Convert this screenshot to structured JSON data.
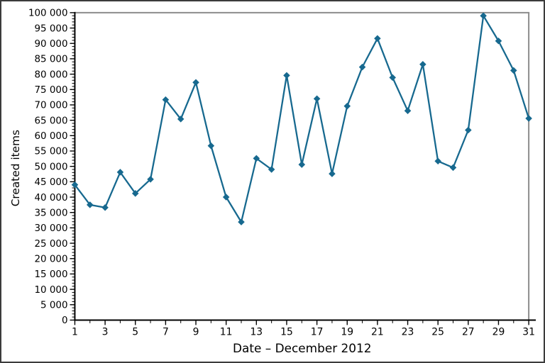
{
  "figure": {
    "background": "#ffffff",
    "border_color": "#3b3b3b"
  },
  "chart_data": {
    "type": "line",
    "title": "",
    "xlabel": "Date – December 2012",
    "ylabel": "Created items",
    "series_name": "Created items",
    "x": [
      1,
      2,
      3,
      4,
      5,
      6,
      7,
      8,
      9,
      10,
      11,
      12,
      13,
      14,
      15,
      16,
      17,
      18,
      19,
      20,
      21,
      22,
      23,
      24,
      25,
      26,
      27,
      28,
      29,
      30,
      31
    ],
    "values": [
      44000,
      37500,
      36600,
      48100,
      41200,
      45800,
      71700,
      65400,
      77300,
      56700,
      40000,
      31900,
      52600,
      49000,
      79600,
      50600,
      72000,
      47600,
      69600,
      82300,
      91600,
      78900,
      68100,
      83200,
      51700,
      49600,
      61800,
      99000,
      90800,
      81200,
      65600
    ],
    "xlim": [
      1,
      31
    ],
    "ylim": [
      0,
      100000
    ],
    "ytick_major_step": 5000,
    "ytick_minor_step": 1000,
    "ytick_labels": [
      "0",
      "5 000",
      "10 000",
      "15 000",
      "20 000",
      "25 000",
      "30 000",
      "35 000",
      "40 000",
      "45 000",
      "50 000",
      "55 000",
      "60 000",
      "65 000",
      "70 000",
      "75 000",
      "80 000",
      "85 000",
      "90 000",
      "95 000",
      "100 000"
    ],
    "xtick_major": [
      1,
      3,
      5,
      7,
      9,
      11,
      13,
      15,
      17,
      19,
      21,
      23,
      25,
      27,
      29,
      31
    ],
    "xtick_labels": [
      "1",
      "3",
      "5",
      "7",
      "9",
      "11",
      "13",
      "15",
      "17",
      "19",
      "21",
      "23",
      "25",
      "27",
      "29",
      "31"
    ],
    "grid": false,
    "legend": "none",
    "line_color": "#17698f",
    "marker": "diamond",
    "axis_color": "#000000",
    "frame_color": "#8c8c8c"
  }
}
